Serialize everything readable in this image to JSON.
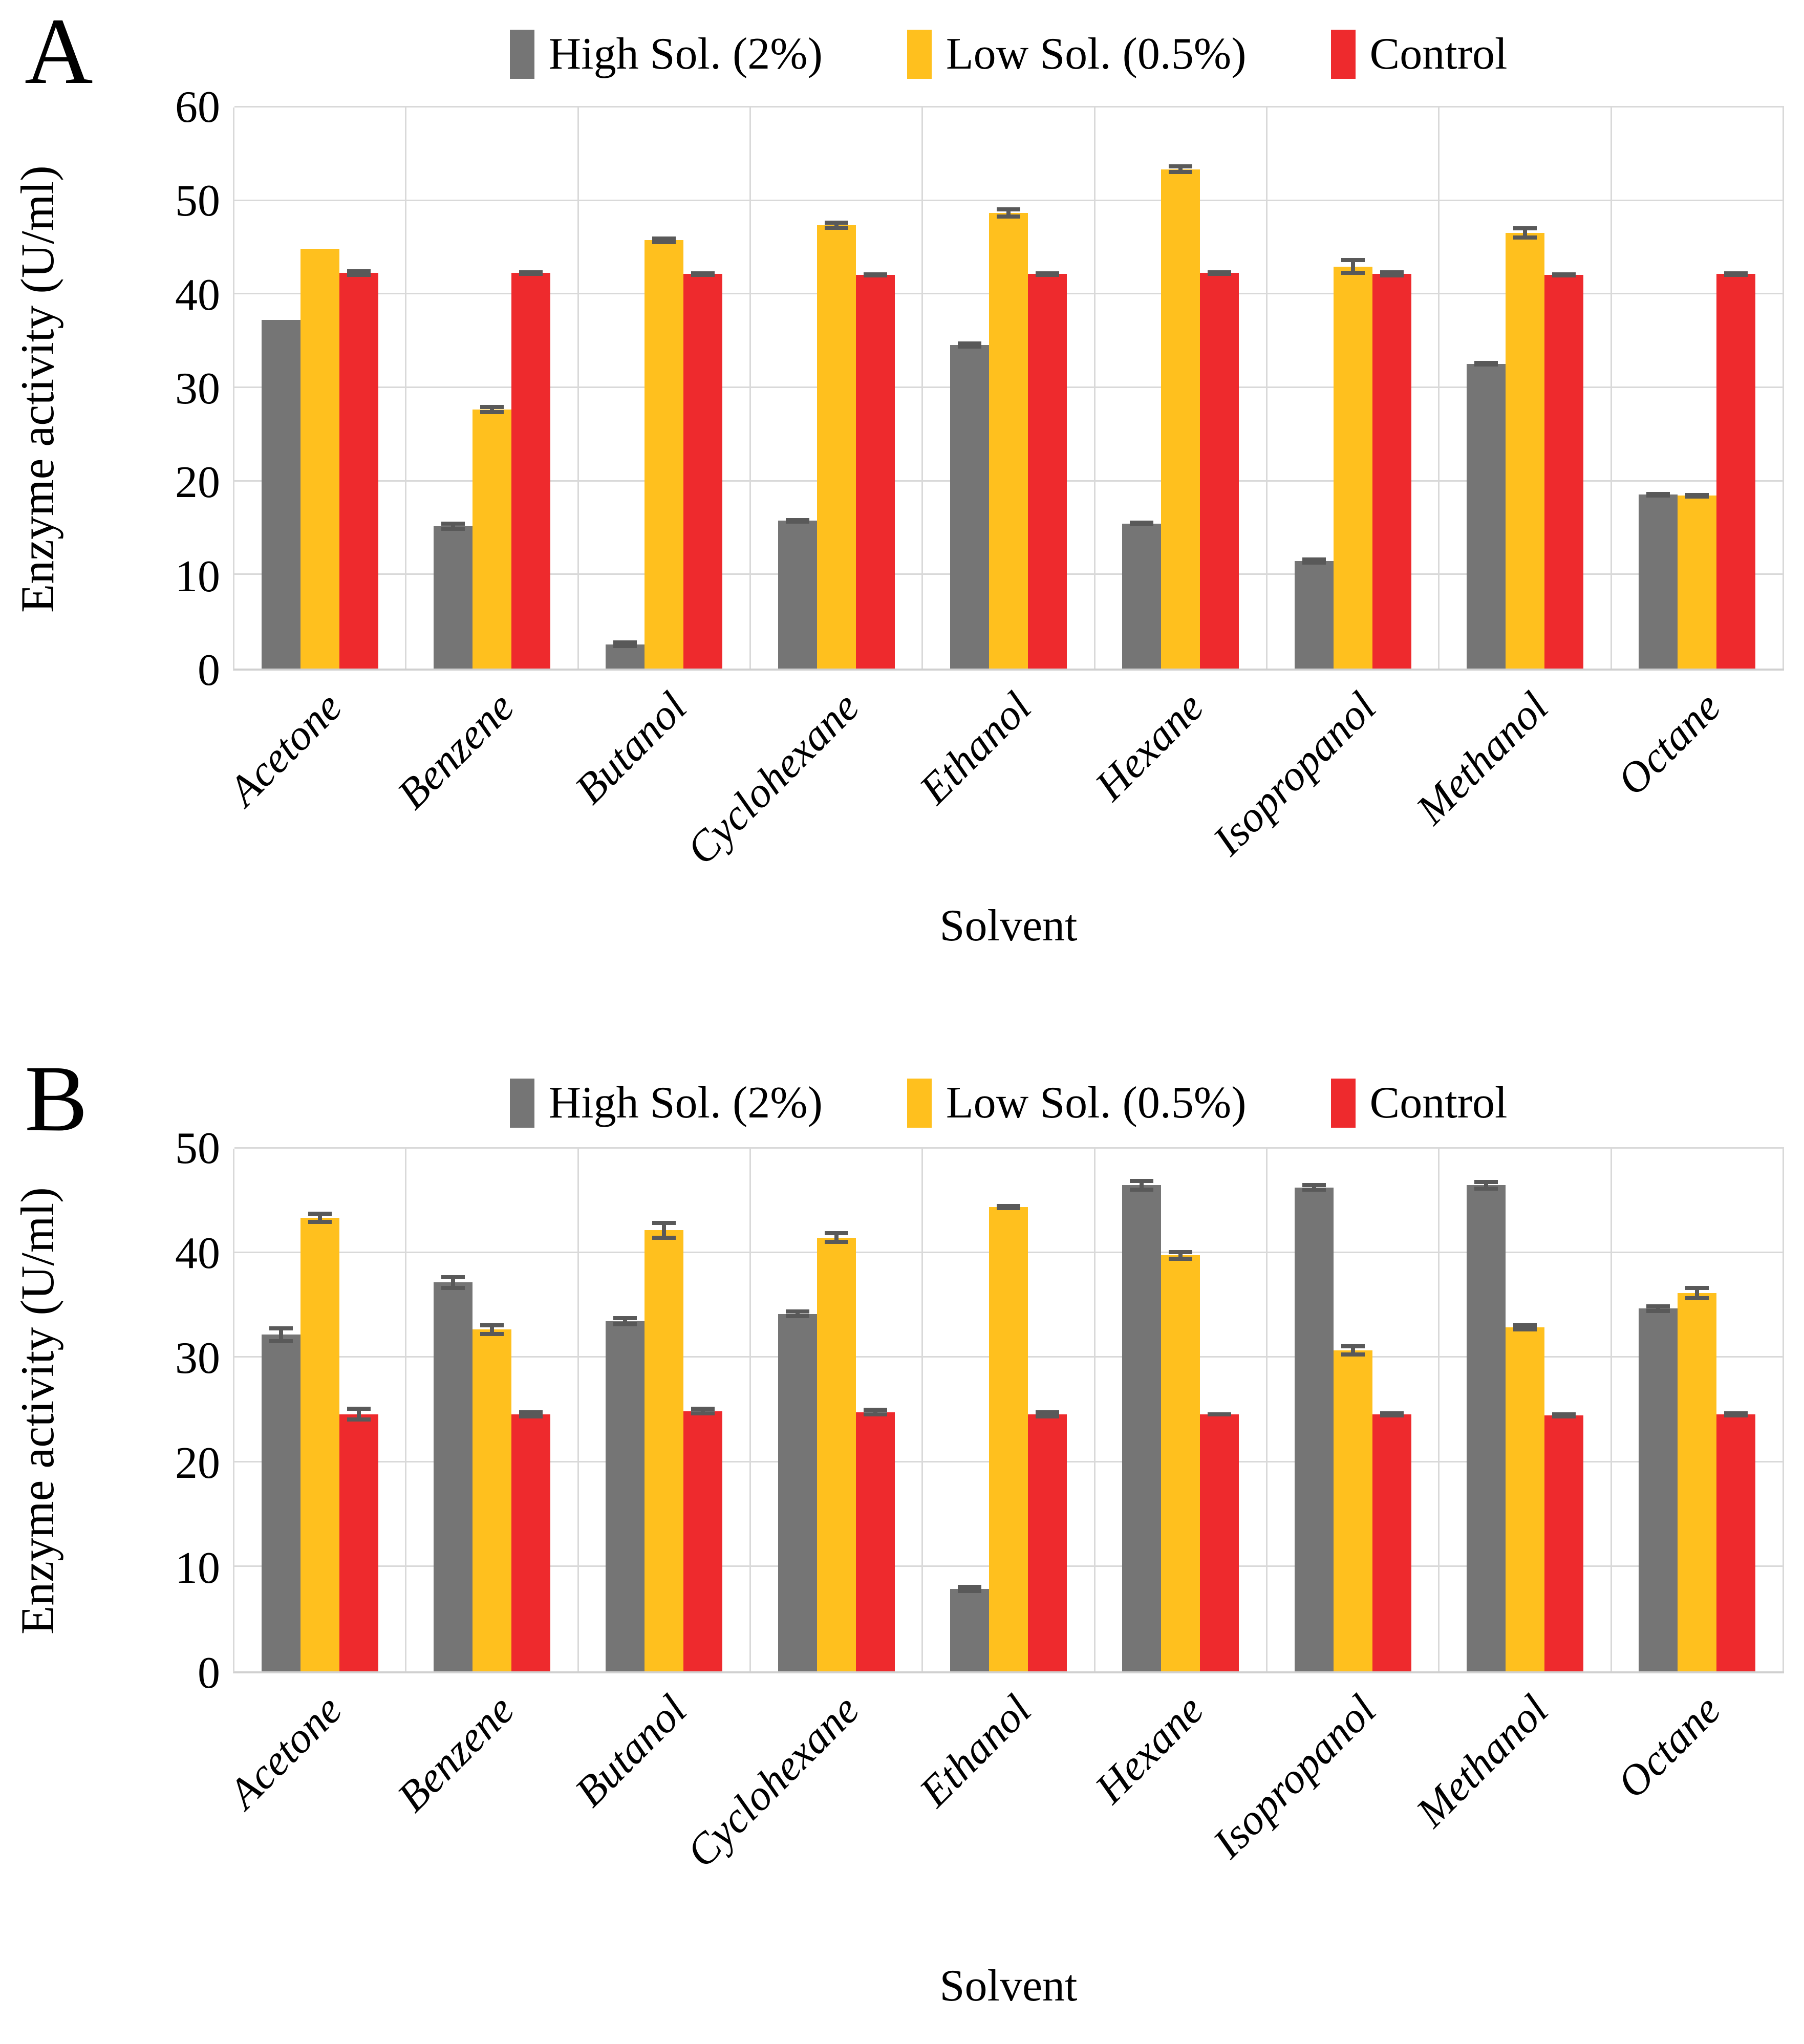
{
  "figure": {
    "panels": [
      {
        "panel_label": "A",
        "y_title": "Enzyme activity (U/ml)",
        "x_title": "Solvent"
      },
      {
        "panel_label": "B",
        "y_title": "Enzyme activity (U/ml)",
        "x_title": "Solvent"
      }
    ],
    "colors": {
      "high_sol": "#757575",
      "low_sol": "#FFC01E",
      "control": "#EE2A2D",
      "error_bar": "#595959",
      "gridline": "#D9D9D9"
    }
  },
  "chart_data": [
    {
      "type": "bar",
      "panel": "A",
      "title": "",
      "xlabel": "Solvent",
      "ylabel": "Enzyme activity (U/ml)",
      "ylim": [
        0,
        60
      ],
      "ytick_step": 10,
      "grid": true,
      "legend_position": "top",
      "categories": [
        "Acetone",
        "Benzene",
        "Butanol",
        "Cyclohexane",
        "Ethanol",
        "Hexane",
        "Isopropanol",
        "Methanol",
        "Octane"
      ],
      "series": [
        {
          "name": "High Sol. (2%)",
          "color": "#757575",
          "values": [
            37.3,
            15.2,
            2.6,
            15.8,
            34.6,
            15.5,
            11.5,
            32.6,
            18.6
          ],
          "errors": [
            0,
            0.5,
            0.4,
            0.3,
            0.4,
            0.3,
            0.4,
            0.3,
            0.3
          ]
        },
        {
          "name": "Low Sol. (0.5%)",
          "color": "#FFC01E",
          "values": [
            44.9,
            27.7,
            45.8,
            47.4,
            48.7,
            53.4,
            43.0,
            46.6,
            18.5
          ],
          "errors": [
            0,
            0.5,
            0.4,
            0.5,
            0.6,
            0.5,
            0.9,
            0.7,
            0.3
          ]
        },
        {
          "name": "Control",
          "color": "#EE2A2D",
          "values": [
            42.3,
            42.3,
            42.2,
            42.1,
            42.2,
            42.3,
            42.2,
            42.1,
            42.2
          ],
          "errors": [
            0.4,
            0.3,
            0.3,
            0.3,
            0.3,
            0.3,
            0.4,
            0.3,
            0.3
          ]
        }
      ]
    },
    {
      "type": "bar",
      "panel": "B",
      "title": "",
      "xlabel": "Solvent",
      "ylabel": "Enzyme activity (U/ml)",
      "ylim": [
        0,
        50
      ],
      "ytick_step": 10,
      "grid": true,
      "legend_position": "top",
      "categories": [
        "Acetone",
        "Benzene",
        "Butanol",
        "Cyclohexane",
        "Ethanol",
        "Hexane",
        "Isopropanol",
        "Methanol",
        "Octane"
      ],
      "series": [
        {
          "name": "High Sol. (2%)",
          "color": "#757575",
          "values": [
            32.2,
            37.2,
            33.5,
            34.2,
            7.9,
            46.5,
            46.3,
            46.5,
            34.7
          ],
          "errors": [
            0.8,
            0.7,
            0.5,
            0.4,
            0.4,
            0.6,
            0.4,
            0.5,
            0.4
          ]
        },
        {
          "name": "Low Sol. (0.5%)",
          "color": "#FFC01E",
          "values": [
            43.4,
            32.7,
            42.2,
            41.5,
            44.4,
            39.8,
            30.7,
            32.9,
            36.2
          ],
          "errors": [
            0.6,
            0.6,
            0.9,
            0.6,
            0.3,
            0.5,
            0.6,
            0.4,
            0.7
          ]
        },
        {
          "name": "Control",
          "color": "#EE2A2D",
          "values": [
            24.6,
            24.6,
            24.9,
            24.8,
            24.6,
            24.6,
            24.6,
            24.5,
            24.6
          ],
          "errors": [
            0.7,
            0.4,
            0.4,
            0.4,
            0.4,
            0.2,
            0.3,
            0.3,
            0.3
          ]
        }
      ]
    }
  ]
}
